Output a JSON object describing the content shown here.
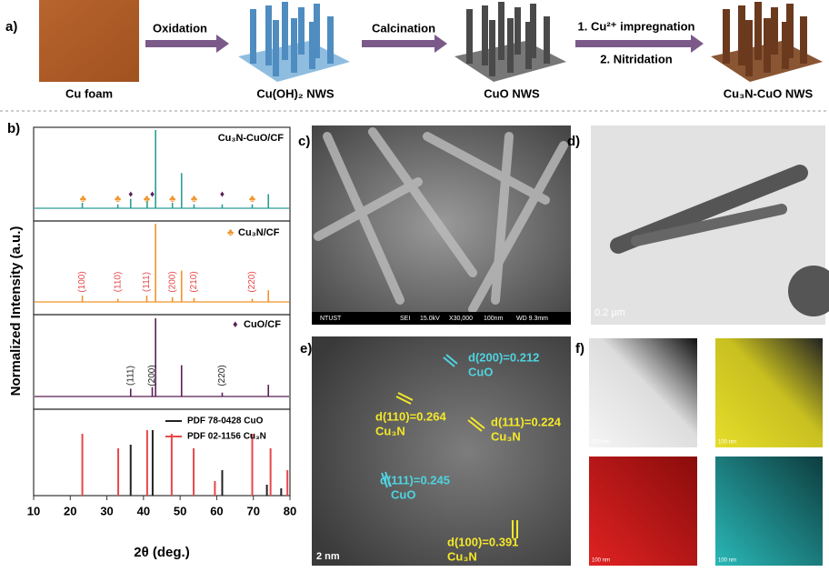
{
  "panel_a": {
    "label": "a)",
    "cu_foam": "Cu foam",
    "step1": "Oxidation",
    "cuoh2": "Cu(OH)₂ NWS",
    "step2": "Calcination",
    "cuo": "CuO NWS",
    "step3a": "1. Cu²⁺ impregnation",
    "step3b": "2. Nitridation",
    "cu3ncuo": "Cu₃N-CuO NWS"
  },
  "chart_data": {
    "type": "spectra",
    "label": "b)",
    "xlabel": "2θ (deg.)",
    "ylabel": "Normalized Intensity (a.u.)",
    "xlim": [
      10,
      80
    ],
    "xticks": [
      10,
      20,
      30,
      40,
      50,
      60,
      70,
      80
    ],
    "series": [
      {
        "name": "Cu₃N-CuO/CF",
        "color": "#2a9d94",
        "x": [
          23.3,
          33.0,
          36.5,
          41.0,
          43.3,
          47.9,
          50.4,
          53.8,
          61.5,
          69.7,
          74.1
        ],
        "values": [
          0.07,
          0.05,
          0.12,
          0.1,
          1.0,
          0.07,
          0.45,
          0.05,
          0.05,
          0.05,
          0.18
        ]
      },
      {
        "name": "Cu₃N/CF",
        "color": "#f0942a",
        "x": [
          23.3,
          33.0,
          40.9,
          43.3,
          47.9,
          50.4,
          53.8,
          69.7,
          74.1
        ],
        "values": [
          0.08,
          0.04,
          0.08,
          1.0,
          0.06,
          0.4,
          0.05,
          0.04,
          0.15
        ]
      },
      {
        "name": "CuO/CF",
        "color": "#5a1f55",
        "x": [
          36.5,
          42.4,
          43.3,
          50.4,
          61.5,
          74.1
        ],
        "values": [
          0.1,
          0.12,
          1.0,
          0.4,
          0.05,
          0.15
        ]
      }
    ],
    "reference_series": [
      {
        "name": "PDF 78-0428 CuO",
        "color": "#222222",
        "x": [
          36.5,
          42.5,
          61.5,
          73.7,
          77.6
        ],
        "values": [
          0.7,
          0.9,
          0.35,
          0.15,
          0.1
        ]
      },
      {
        "name": "PDF 02-1156 Cu₃N",
        "color": "#e8474a",
        "x": [
          23.3,
          33.1,
          41.0,
          47.7,
          53.7,
          59.5,
          69.7,
          74.7,
          79.3
        ],
        "values": [
          0.85,
          0.65,
          0.9,
          0.85,
          0.65,
          0.2,
          0.85,
          0.65,
          0.35
        ]
      }
    ],
    "cu3n_symbol": "♣",
    "cuo_symbol": "♦",
    "cu3n_marked_x": [
      23.5,
      33.0,
      40.9,
      47.9,
      53.8,
      69.7
    ],
    "cuo_marked_x": [
      36.5,
      42.4,
      61.5
    ],
    "cu3n_hkl": {
      "labels": [
        "(100)",
        "(110)",
        "(111)",
        "(200)",
        "(210)",
        "(220)"
      ],
      "x": [
        23.3,
        33.0,
        40.9,
        47.9,
        53.8,
        69.7
      ]
    },
    "cuo_hkl": {
      "labels": [
        "(111)",
        "(200)",
        "(220)"
      ],
      "x": [
        36.5,
        42.4,
        61.5
      ]
    }
  },
  "panel_c": {
    "label": "c)",
    "info": [
      "NTUST",
      "SEI",
      "15.0kV",
      "X30,000",
      "100nm",
      "WD 9.3mm"
    ]
  },
  "panel_d": {
    "label": "d)",
    "scale": "0.2 µm"
  },
  "panel_e": {
    "label": "e)",
    "scale": "2 nm",
    "spacings": [
      {
        "d": "d(200)=0.212",
        "phase": "CuO"
      },
      {
        "d": "d(110)=0.264",
        "phase": "Cu₃N"
      },
      {
        "d": "d(111)=0.224",
        "phase": "Cu₃N"
      },
      {
        "d": "d(111)=0.245",
        "phase": "CuO"
      },
      {
        "d": "d(100)=0.391",
        "phase": "Cu₃N"
      }
    ]
  },
  "panel_f": {
    "label": "f)",
    "scales": [
      "100 nm",
      "100 nm",
      "100 nm",
      "100 nm"
    ]
  }
}
